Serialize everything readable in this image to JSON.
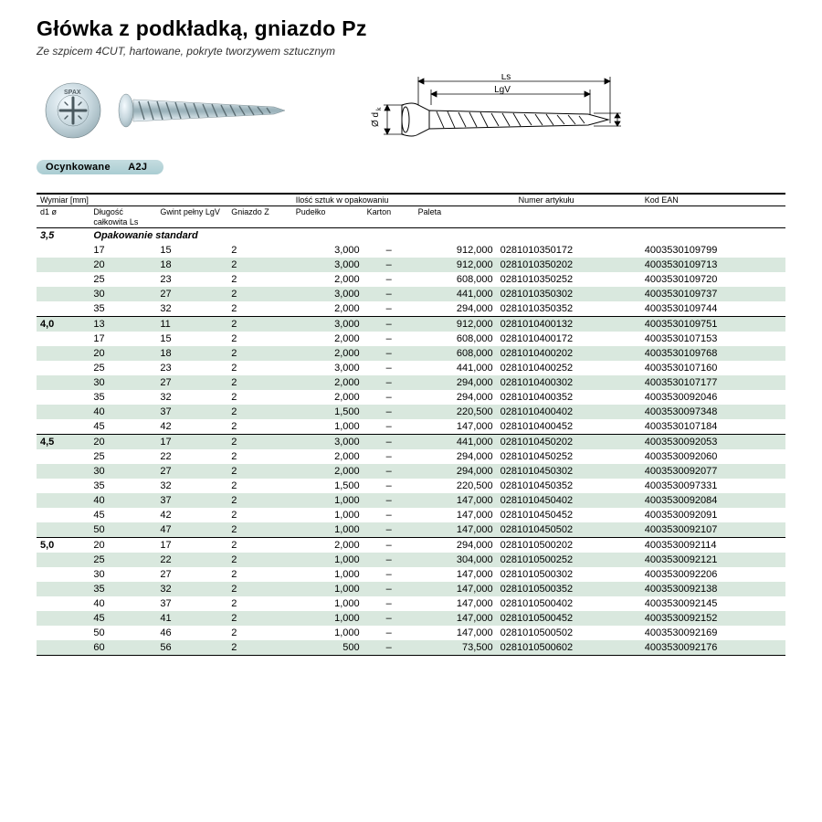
{
  "title": "Główka z podkładką, gniazdo Pz",
  "subtitle_prefix": "Ze ",
  "subtitle_em": "szpicem 4CUT,",
  "subtitle_rest": " hartowane, pokryte tworzywem sztucznym",
  "badge": {
    "left": "Ocynkowane",
    "right": "A2J"
  },
  "diagram_labels": {
    "ls": "Ls",
    "lgv": "LgV",
    "dk": "Ø d",
    "dk_sub": "k",
    "d1": "Ø d1"
  },
  "headers": {
    "group1": "Wymiar [mm]",
    "group2": "Ilość sztuk w opakowaniu",
    "group3": "Numer artykułu",
    "group4": "Kod EAN",
    "d1": "d1 ø",
    "ls": "Długość całkowita Ls",
    "lgv": "Gwint pełny LgV",
    "z": "Gniazdo Z",
    "pu": "Pudełko",
    "ka": "Karton",
    "pa": "Paleta"
  },
  "packaging_label": "Opakowanie standard",
  "groups": [
    {
      "d1": "3,5",
      "rows": [
        {
          "ls": "17",
          "lgv": "15",
          "z": "2",
          "pu": "3,000",
          "ka": "–",
          "pa": "912,000",
          "art": "0281010350172",
          "ean": "4003530109799"
        },
        {
          "ls": "20",
          "lgv": "18",
          "z": "2",
          "pu": "3,000",
          "ka": "–",
          "pa": "912,000",
          "art": "0281010350202",
          "ean": "4003530109713"
        },
        {
          "ls": "25",
          "lgv": "23",
          "z": "2",
          "pu": "2,000",
          "ka": "–",
          "pa": "608,000",
          "art": "0281010350252",
          "ean": "4003530109720"
        },
        {
          "ls": "30",
          "lgv": "27",
          "z": "2",
          "pu": "3,000",
          "ka": "–",
          "pa": "441,000",
          "art": "0281010350302",
          "ean": "4003530109737"
        },
        {
          "ls": "35",
          "lgv": "32",
          "z": "2",
          "pu": "2,000",
          "ka": "–",
          "pa": "294,000",
          "art": "0281010350352",
          "ean": "4003530109744"
        }
      ]
    },
    {
      "d1": "4,0",
      "rows": [
        {
          "ls": "13",
          "lgv": "11",
          "z": "2",
          "pu": "3,000",
          "ka": "–",
          "pa": "912,000",
          "art": "0281010400132",
          "ean": "4003530109751"
        },
        {
          "ls": "17",
          "lgv": "15",
          "z": "2",
          "pu": "2,000",
          "ka": "–",
          "pa": "608,000",
          "art": "0281010400172",
          "ean": "4003530107153"
        },
        {
          "ls": "20",
          "lgv": "18",
          "z": "2",
          "pu": "2,000",
          "ka": "–",
          "pa": "608,000",
          "art": "0281010400202",
          "ean": "4003530109768"
        },
        {
          "ls": "25",
          "lgv": "23",
          "z": "2",
          "pu": "3,000",
          "ka": "–",
          "pa": "441,000",
          "art": "0281010400252",
          "ean": "4003530107160"
        },
        {
          "ls": "30",
          "lgv": "27",
          "z": "2",
          "pu": "2,000",
          "ka": "–",
          "pa": "294,000",
          "art": "0281010400302",
          "ean": "4003530107177"
        },
        {
          "ls": "35",
          "lgv": "32",
          "z": "2",
          "pu": "2,000",
          "ka": "–",
          "pa": "294,000",
          "art": "0281010400352",
          "ean": "4003530092046"
        },
        {
          "ls": "40",
          "lgv": "37",
          "z": "2",
          "pu": "1,500",
          "ka": "–",
          "pa": "220,500",
          "art": "0281010400402",
          "ean": "4003530097348"
        },
        {
          "ls": "45",
          "lgv": "42",
          "z": "2",
          "pu": "1,000",
          "ka": "–",
          "pa": "147,000",
          "art": "0281010400452",
          "ean": "4003530107184"
        }
      ]
    },
    {
      "d1": "4,5",
      "rows": [
        {
          "ls": "20",
          "lgv": "17",
          "z": "2",
          "pu": "3,000",
          "ka": "–",
          "pa": "441,000",
          "art": "0281010450202",
          "ean": "4003530092053"
        },
        {
          "ls": "25",
          "lgv": "22",
          "z": "2",
          "pu": "2,000",
          "ka": "–",
          "pa": "294,000",
          "art": "0281010450252",
          "ean": "4003530092060"
        },
        {
          "ls": "30",
          "lgv": "27",
          "z": "2",
          "pu": "2,000",
          "ka": "–",
          "pa": "294,000",
          "art": "0281010450302",
          "ean": "4003530092077"
        },
        {
          "ls": "35",
          "lgv": "32",
          "z": "2",
          "pu": "1,500",
          "ka": "–",
          "pa": "220,500",
          "art": "0281010450352",
          "ean": "4003530097331"
        },
        {
          "ls": "40",
          "lgv": "37",
          "z": "2",
          "pu": "1,000",
          "ka": "–",
          "pa": "147,000",
          "art": "0281010450402",
          "ean": "4003530092084"
        },
        {
          "ls": "45",
          "lgv": "42",
          "z": "2",
          "pu": "1,000",
          "ka": "–",
          "pa": "147,000",
          "art": "0281010450452",
          "ean": "4003530092091"
        },
        {
          "ls": "50",
          "lgv": "47",
          "z": "2",
          "pu": "1,000",
          "ka": "–",
          "pa": "147,000",
          "art": "0281010450502",
          "ean": "4003530092107"
        }
      ]
    },
    {
      "d1": "5,0",
      "rows": [
        {
          "ls": "20",
          "lgv": "17",
          "z": "2",
          "pu": "2,000",
          "ka": "–",
          "pa": "294,000",
          "art": "0281010500202",
          "ean": "4003530092114"
        },
        {
          "ls": "25",
          "lgv": "22",
          "z": "2",
          "pu": "1,000",
          "ka": "–",
          "pa": "304,000",
          "art": "0281010500252",
          "ean": "4003530092121"
        },
        {
          "ls": "30",
          "lgv": "27",
          "z": "2",
          "pu": "1,000",
          "ka": "–",
          "pa": "147,000",
          "art": "0281010500302",
          "ean": "4003530092206"
        },
        {
          "ls": "35",
          "lgv": "32",
          "z": "2",
          "pu": "1,000",
          "ka": "–",
          "pa": "147,000",
          "art": "0281010500352",
          "ean": "4003530092138"
        },
        {
          "ls": "40",
          "lgv": "37",
          "z": "2",
          "pu": "1,000",
          "ka": "–",
          "pa": "147,000",
          "art": "0281010500402",
          "ean": "4003530092145"
        },
        {
          "ls": "45",
          "lgv": "41",
          "z": "2",
          "pu": "1,000",
          "ka": "–",
          "pa": "147,000",
          "art": "0281010500452",
          "ean": "4003530092152"
        },
        {
          "ls": "50",
          "lgv": "46",
          "z": "2",
          "pu": "1,000",
          "ka": "–",
          "pa": "147,000",
          "art": "0281010500502",
          "ean": "4003530092169"
        },
        {
          "ls": "60",
          "lgv": "56",
          "z": "2",
          "pu": "500",
          "ka": "–",
          "pa": "73,500",
          "art": "0281010500602",
          "ean": "4003530092176"
        }
      ]
    }
  ]
}
